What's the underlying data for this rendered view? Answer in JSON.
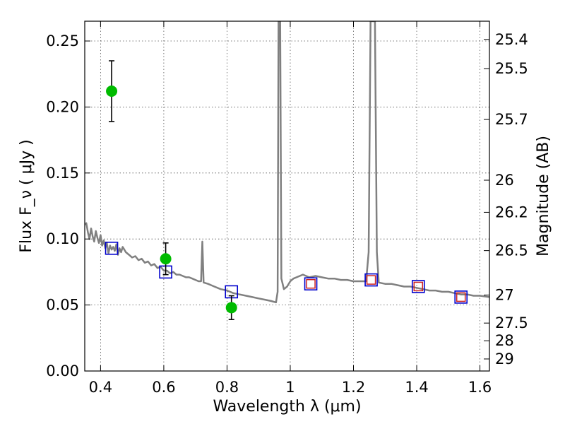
{
  "chart_data": {
    "type": "scatter",
    "title": "",
    "xlabel": "Wavelength  λ (μm)",
    "ylabel": "Flux  F_ν  ( μJy )",
    "ylabel_right": "Magnitude (AB)",
    "xlim": [
      0.35,
      1.63
    ],
    "ylim": [
      0.0,
      0.265
    ],
    "grid": true,
    "x_ticks": [
      {
        "v": 0.4,
        "label": "0.4"
      },
      {
        "v": 0.6,
        "label": "0.6"
      },
      {
        "v": 0.8,
        "label": "0.8"
      },
      {
        "v": 1.0,
        "label": "1"
      },
      {
        "v": 1.2,
        "label": "1.2"
      },
      {
        "v": 1.4,
        "label": "1.4"
      },
      {
        "v": 1.6,
        "label": "1.6"
      }
    ],
    "y_ticks": [
      {
        "v": 0.0,
        "label": "0.00"
      },
      {
        "v": 0.05,
        "label": "0.05"
      },
      {
        "v": 0.1,
        "label": "0.10"
      },
      {
        "v": 0.15,
        "label": "0.15"
      },
      {
        "v": 0.2,
        "label": "0.20"
      },
      {
        "v": 0.25,
        "label": "0.25"
      }
    ],
    "mag_ticks": [
      {
        "mag": 25.4,
        "label": "25.4"
      },
      {
        "mag": 25.5,
        "label": "25.5"
      },
      {
        "mag": 25.7,
        "label": "25.7"
      },
      {
        "mag": 26.0,
        "label": "26"
      },
      {
        "mag": 26.2,
        "label": "26.2"
      },
      {
        "mag": 26.5,
        "label": "26.5"
      },
      {
        "mag": 27.0,
        "label": "27"
      },
      {
        "mag": 27.5,
        "label": "27.5"
      },
      {
        "mag": 28.0,
        "label": "28"
      },
      {
        "mag": 29.0,
        "label": "29"
      }
    ],
    "colors": {
      "observed": "#00bb00",
      "model_box": "#0000cc",
      "model_inner": "#cc2222",
      "sed": "#808080",
      "grid": "#555555"
    },
    "observed": [
      {
        "x": 0.435,
        "y": 0.212,
        "err": 0.023
      },
      {
        "x": 0.606,
        "y": 0.085,
        "err": 0.012
      },
      {
        "x": 0.814,
        "y": 0.048,
        "err": 0.009
      }
    ],
    "model_photometry": [
      {
        "x": 0.435,
        "y": 0.093,
        "inner": false
      },
      {
        "x": 0.606,
        "y": 0.075,
        "inner": false
      },
      {
        "x": 0.814,
        "y": 0.06,
        "inner": false
      },
      {
        "x": 1.065,
        "y": 0.066,
        "inner": true
      },
      {
        "x": 1.256,
        "y": 0.069,
        "inner": true
      },
      {
        "x": 1.405,
        "y": 0.064,
        "inner": true
      },
      {
        "x": 1.54,
        "y": 0.056,
        "inner": true
      }
    ],
    "sed_curve": [
      [
        0.35,
        0.111
      ],
      [
        0.355,
        0.112
      ],
      [
        0.36,
        0.105
      ],
      [
        0.365,
        0.1
      ],
      [
        0.37,
        0.108
      ],
      [
        0.375,
        0.102
      ],
      [
        0.38,
        0.098
      ],
      [
        0.385,
        0.106
      ],
      [
        0.39,
        0.101
      ],
      [
        0.395,
        0.097
      ],
      [
        0.4,
        0.103
      ],
      [
        0.405,
        0.095
      ],
      [
        0.41,
        0.099
      ],
      [
        0.415,
        0.093
      ],
      [
        0.42,
        0.097
      ],
      [
        0.425,
        0.089
      ],
      [
        0.43,
        0.095
      ],
      [
        0.435,
        0.092
      ],
      [
        0.44,
        0.094
      ],
      [
        0.445,
        0.091
      ],
      [
        0.45,
        0.096
      ],
      [
        0.455,
        0.088
      ],
      [
        0.46,
        0.093
      ],
      [
        0.465,
        0.09
      ],
      [
        0.47,
        0.094
      ],
      [
        0.48,
        0.09
      ],
      [
        0.49,
        0.088
      ],
      [
        0.5,
        0.086
      ],
      [
        0.51,
        0.087
      ],
      [
        0.52,
        0.084
      ],
      [
        0.53,
        0.085
      ],
      [
        0.54,
        0.082
      ],
      [
        0.55,
        0.083
      ],
      [
        0.56,
        0.08
      ],
      [
        0.57,
        0.081
      ],
      [
        0.58,
        0.078
      ],
      [
        0.59,
        0.079
      ],
      [
        0.6,
        0.076
      ],
      [
        0.61,
        0.076
      ],
      [
        0.62,
        0.074
      ],
      [
        0.63,
        0.075
      ],
      [
        0.64,
        0.073
      ],
      [
        0.65,
        0.073
      ],
      [
        0.66,
        0.072
      ],
      [
        0.67,
        0.071
      ],
      [
        0.68,
        0.071
      ],
      [
        0.69,
        0.07
      ],
      [
        0.7,
        0.069
      ],
      [
        0.71,
        0.068
      ],
      [
        0.718,
        0.068
      ],
      [
        0.722,
        0.098
      ],
      [
        0.726,
        0.067
      ],
      [
        0.74,
        0.066
      ],
      [
        0.75,
        0.065
      ],
      [
        0.76,
        0.064
      ],
      [
        0.78,
        0.062
      ],
      [
        0.8,
        0.061
      ],
      [
        0.82,
        0.059
      ],
      [
        0.84,
        0.058
      ],
      [
        0.86,
        0.057
      ],
      [
        0.88,
        0.056
      ],
      [
        0.9,
        0.055
      ],
      [
        0.92,
        0.054
      ],
      [
        0.94,
        0.053
      ],
      [
        0.955,
        0.052
      ],
      [
        0.96,
        0.06
      ],
      [
        0.963,
        0.265
      ],
      [
        0.968,
        0.265
      ],
      [
        0.972,
        0.07
      ],
      [
        0.98,
        0.062
      ],
      [
        0.99,
        0.064
      ],
      [
        1.0,
        0.068
      ],
      [
        1.01,
        0.07
      ],
      [
        1.02,
        0.071
      ],
      [
        1.03,
        0.072
      ],
      [
        1.04,
        0.073
      ],
      [
        1.06,
        0.071
      ],
      [
        1.08,
        0.072
      ],
      [
        1.1,
        0.071
      ],
      [
        1.12,
        0.07
      ],
      [
        1.14,
        0.07
      ],
      [
        1.16,
        0.069
      ],
      [
        1.18,
        0.069
      ],
      [
        1.2,
        0.068
      ],
      [
        1.22,
        0.068
      ],
      [
        1.24,
        0.068
      ],
      [
        1.248,
        0.09
      ],
      [
        1.254,
        0.265
      ],
      [
        1.268,
        0.265
      ],
      [
        1.274,
        0.09
      ],
      [
        1.28,
        0.067
      ],
      [
        1.3,
        0.066
      ],
      [
        1.32,
        0.066
      ],
      [
        1.34,
        0.065
      ],
      [
        1.36,
        0.064
      ],
      [
        1.38,
        0.064
      ],
      [
        1.4,
        0.063
      ],
      [
        1.42,
        0.062
      ],
      [
        1.44,
        0.061
      ],
      [
        1.46,
        0.061
      ],
      [
        1.48,
        0.06
      ],
      [
        1.5,
        0.06
      ],
      [
        1.52,
        0.059
      ],
      [
        1.54,
        0.058
      ],
      [
        1.56,
        0.058
      ],
      [
        1.58,
        0.057
      ],
      [
        1.6,
        0.057
      ],
      [
        1.63,
        0.056
      ]
    ]
  }
}
